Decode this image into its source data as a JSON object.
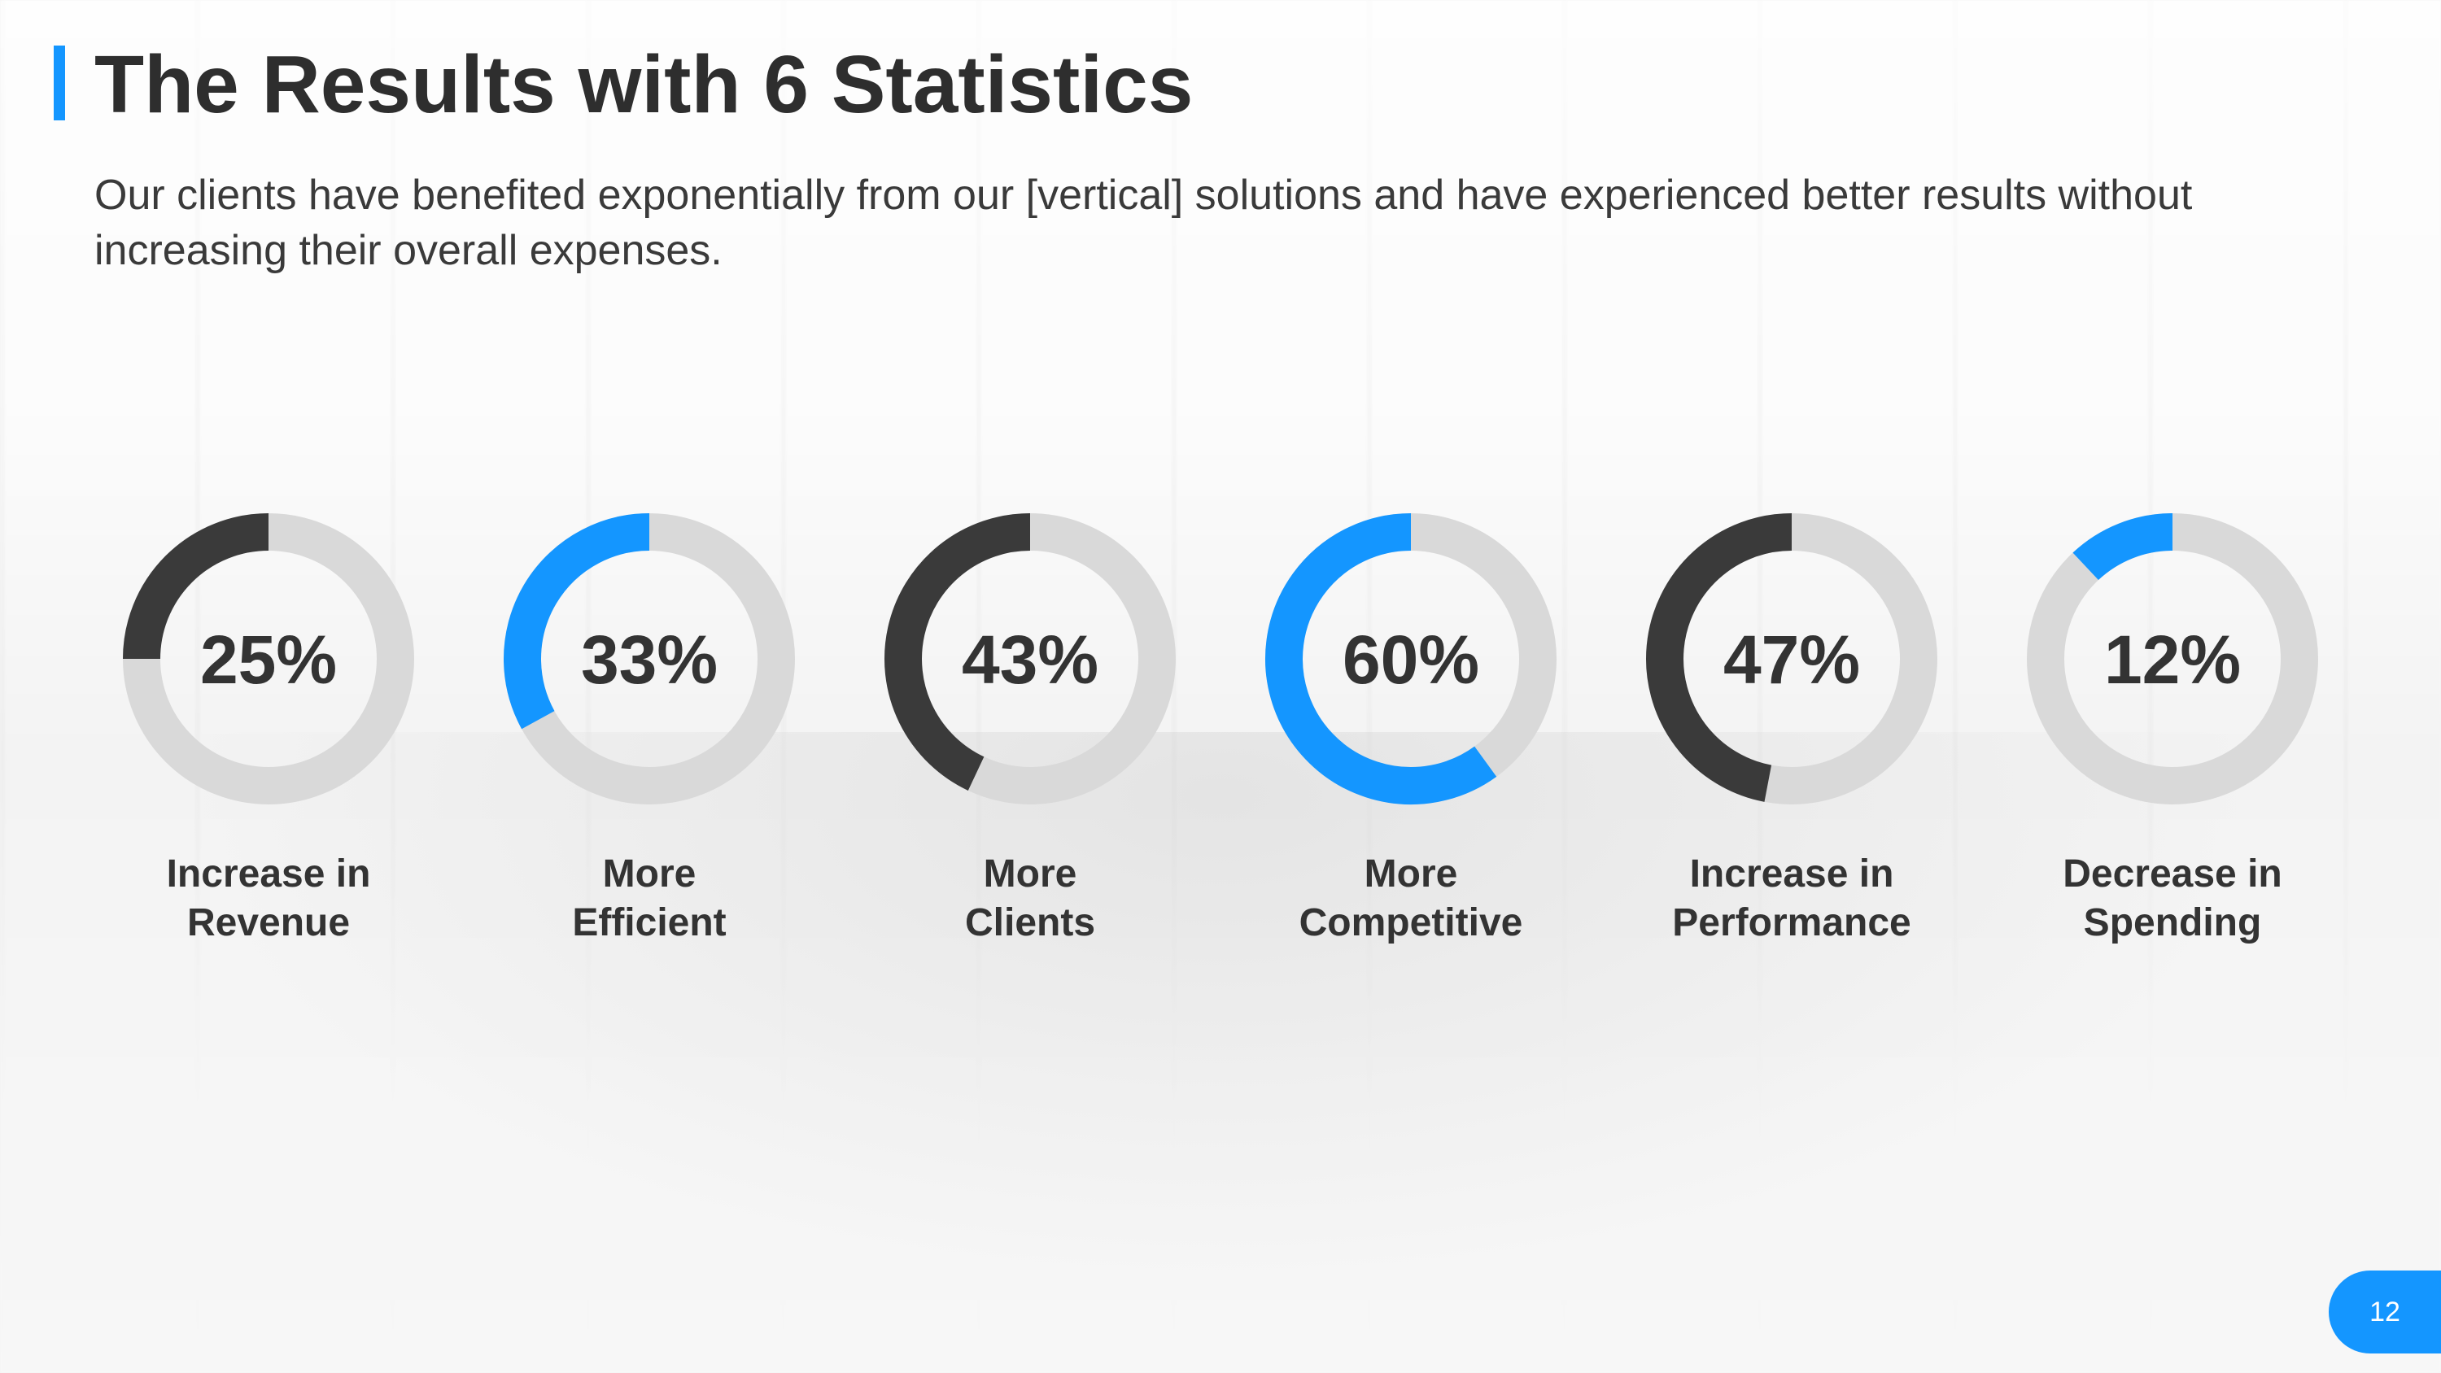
{
  "slide": {
    "title": "The Results with 6 Statistics",
    "subtitle": "Our clients have benefited exponentially from our [vertical] solutions and have experienced better results without increasing their overall expenses.",
    "page_number": "12"
  },
  "colors": {
    "accent_blue": "#1496ff",
    "dark": "#3a3a3a",
    "track": "#d9d9d9"
  },
  "chart_data": {
    "type": "donut",
    "items": [
      {
        "value": 25,
        "display": "25%",
        "label_line1": "Increase in",
        "label_line2": "Revenue",
        "ring_color": "dark"
      },
      {
        "value": 33,
        "display": "33%",
        "label_line1": "More",
        "label_line2": "Efficient",
        "ring_color": "blue"
      },
      {
        "value": 43,
        "display": "43%",
        "label_line1": "More",
        "label_line2": "Clients",
        "ring_color": "dark"
      },
      {
        "value": 60,
        "display": "60%",
        "label_line1": "More",
        "label_line2": "Competitive",
        "ring_color": "blue"
      },
      {
        "value": 47,
        "display": "47%",
        "label_line1": "Increase in",
        "label_line2": "Performance",
        "ring_color": "dark"
      },
      {
        "value": 12,
        "display": "12%",
        "label_line1": "Decrease in",
        "label_line2": "Spending",
        "ring_color": "blue"
      }
    ]
  }
}
